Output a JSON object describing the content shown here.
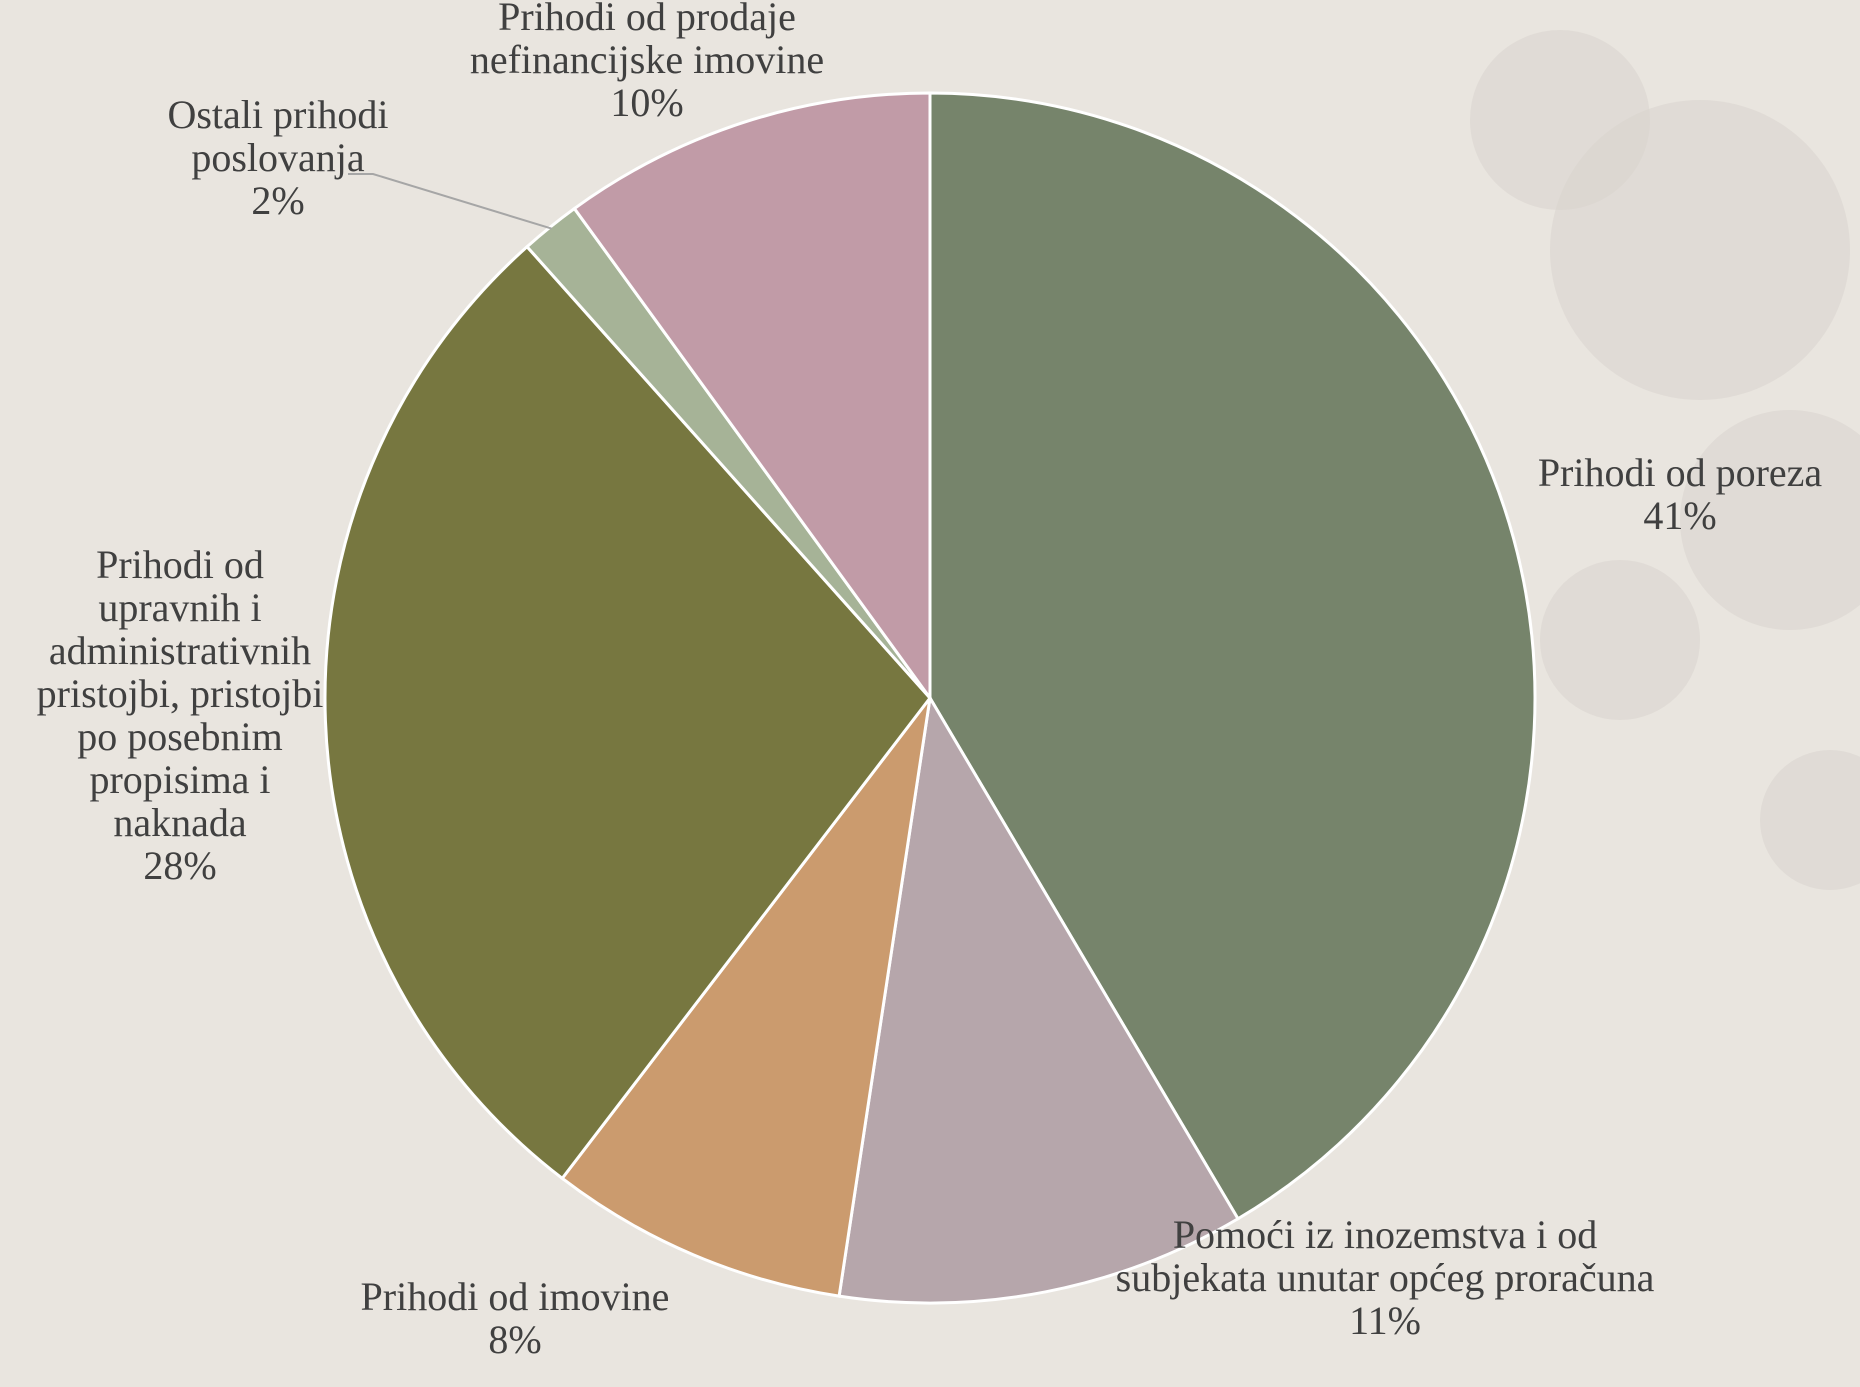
{
  "chart_data": {
    "type": "pie",
    "title": "",
    "slices": [
      {
        "name": "Prihodi od poreza",
        "label_lines": [
          "Prihodi od poreza"
        ],
        "percent_label": "41%",
        "value": 41.5,
        "color": "#76846b"
      },
      {
        "name": "Pomoći iz inozemstva i od subjekata unutar općeg proračuna",
        "label_lines": [
          "Pomoći iz inozemstva i od",
          "subjekata unutar općeg proračuna"
        ],
        "percent_label": "11%",
        "value": 10.9,
        "color": "#b6a6ab"
      },
      {
        "name": "Prihodi od imovine",
        "label_lines": [
          "Prihodi od imovine"
        ],
        "percent_label": "8%",
        "value": 8.0,
        "color": "#cb9b6e"
      },
      {
        "name": "Prihodi od upravnih i administrativnih pristojbi, pristojbi po posebnim propisima i naknada",
        "label_lines": [
          "Prihodi od",
          "upravnih i",
          "administrativnih",
          "pristojbi, pristojbi",
          "po posebnim",
          "propisima i",
          "naknada"
        ],
        "percent_label": "28%",
        "value": 28.0,
        "color": "#777740"
      },
      {
        "name": "Ostali prihodi poslovanja",
        "label_lines": [
          "Ostali prihodi",
          "poslovanja"
        ],
        "percent_label": "2%",
        "value": 1.6,
        "color": "#a6b397"
      },
      {
        "name": "Prihodi od prodaje nefinancijske imovine",
        "label_lines": [
          "Prihodi od prodaje",
          "nefinancijske imovine"
        ],
        "percent_label": "10%",
        "value": 10.0,
        "color": "#c19ba7"
      }
    ],
    "legend": "none",
    "data_labels": "outside"
  }
}
